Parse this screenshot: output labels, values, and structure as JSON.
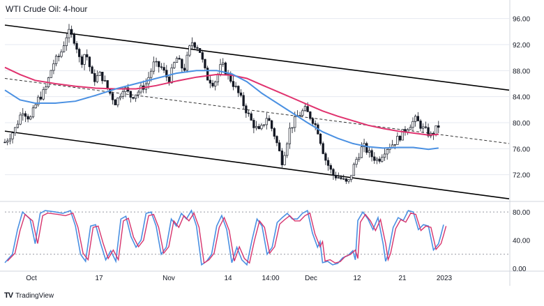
{
  "title": "WTI Crude Oil: 4-hour",
  "brand": {
    "logo": "TV",
    "name": "TradingView",
    "icon": "tradingview-logo-icon"
  },
  "colors": {
    "candle": "#131722",
    "sma_fast": "#4a90e2",
    "sma_slow": "#e0326e",
    "channel": "#000000",
    "midline": "#333333",
    "stoch_k": "#4a90e2",
    "stoch_d": "#d6336c",
    "grid": "#e6e9f0",
    "axis_text": "#131722"
  },
  "chart_data": {
    "type": "candlestick",
    "price_axis": {
      "ticks": [
        "96.00",
        "92.00",
        "88.00",
        "84.00",
        "80.00",
        "76.00",
        "72.00"
      ],
      "ylim": [
        68,
        98
      ]
    },
    "osc_axis": {
      "ticks": [
        "80.00",
        "40.00",
        "0.00"
      ],
      "ylim": [
        -3,
        92
      ],
      "overbought": 80,
      "oversold": 20
    },
    "x_axis": {
      "ticks": [
        "Oct",
        "17",
        "Nov",
        "14",
        "14:00",
        "Dec",
        "12",
        "21",
        "2023"
      ]
    },
    "trend_lines": {
      "upper_channel": [
        [
          0,
          95.0
        ],
        [
          100,
          85.0
        ]
      ],
      "lower_channel": [
        [
          0,
          78.7
        ],
        [
          100,
          68.3
        ]
      ],
      "midline": [
        [
          0,
          86.8
        ],
        [
          100,
          76.8
        ]
      ]
    },
    "price_path": [
      [
        0,
        77.0
      ],
      [
        2,
        79.0
      ],
      [
        3.5,
        82.0
      ],
      [
        5,
        80.5
      ],
      [
        6.5,
        83.5
      ],
      [
        8,
        85.0
      ],
      [
        9.5,
        89.0
      ],
      [
        11,
        90.5
      ],
      [
        12.5,
        94.0
      ],
      [
        14,
        92.5
      ],
      [
        15,
        89.0
      ],
      [
        16,
        91.0
      ],
      [
        17.5,
        86.5
      ],
      [
        19,
        87.5
      ],
      [
        20.5,
        85.0
      ],
      [
        22,
        83.0
      ],
      [
        23.5,
        85.5
      ],
      [
        25,
        84.0
      ],
      [
        26.5,
        84.8
      ],
      [
        28,
        86.0
      ],
      [
        29.5,
        89.0
      ],
      [
        31,
        88.5
      ],
      [
        32.5,
        86.5
      ],
      [
        34,
        90.0
      ],
      [
        35.5,
        88.0
      ],
      [
        37,
        92.5
      ],
      [
        38.5,
        91.5
      ],
      [
        40,
        87.0
      ],
      [
        41.5,
        86.0
      ],
      [
        43,
        89.0
      ],
      [
        44.5,
        87.0
      ],
      [
        46,
        85.0
      ],
      [
        47.5,
        82.5
      ],
      [
        49,
        80.0
      ],
      [
        50.5,
        78.5
      ],
      [
        52,
        81.0
      ],
      [
        53.5,
        78.0
      ],
      [
        55,
        74.0
      ],
      [
        56.5,
        79.0
      ],
      [
        58,
        81.0
      ],
      [
        59.5,
        82.0
      ],
      [
        61,
        80.5
      ],
      [
        62,
        79.0
      ],
      [
        63.5,
        74.5
      ],
      [
        65,
        72.0
      ],
      [
        66.5,
        71.5
      ],
      [
        68,
        70.5
      ],
      [
        69.5,
        74.0
      ],
      [
        71,
        76.5
      ],
      [
        72.5,
        75.0
      ],
      [
        74,
        74.2
      ],
      [
        75.5,
        76.0
      ],
      [
        77,
        76.8
      ],
      [
        78.5,
        78.0
      ],
      [
        80,
        79.5
      ],
      [
        81.5,
        80.5
      ],
      [
        83,
        79.0
      ],
      [
        84.5,
        78.0
      ],
      [
        86,
        79.5
      ]
    ],
    "sma_fast": [
      [
        0,
        85.0
      ],
      [
        3,
        83.5
      ],
      [
        6,
        83.0
      ],
      [
        10,
        83.0
      ],
      [
        14,
        83.3
      ],
      [
        18,
        84.2
      ],
      [
        22,
        85.2
      ],
      [
        26,
        86.0
      ],
      [
        30,
        86.8
      ],
      [
        34,
        87.6
      ],
      [
        38,
        88.0
      ],
      [
        42,
        88.0
      ],
      [
        45,
        87.5
      ],
      [
        48,
        86.3
      ],
      [
        51,
        84.5
      ],
      [
        54,
        83.0
      ],
      [
        57,
        81.5
      ],
      [
        60,
        80.0
      ],
      [
        63,
        78.6
      ],
      [
        66,
        77.6
      ],
      [
        69,
        76.8
      ],
      [
        72,
        76.3
      ],
      [
        75,
        76.1
      ],
      [
        78,
        76.2
      ],
      [
        81,
        76.2
      ],
      [
        84,
        75.9
      ],
      [
        86,
        76.1
      ]
    ],
    "sma_slow": [
      [
        0,
        88.5
      ],
      [
        3,
        87.4
      ],
      [
        6,
        86.5
      ],
      [
        10,
        86.0
      ],
      [
        14,
        85.6
      ],
      [
        18,
        85.3
      ],
      [
        22,
        85.2
      ],
      [
        26,
        85.2
      ],
      [
        30,
        85.7
      ],
      [
        34,
        86.4
      ],
      [
        38,
        87.0
      ],
      [
        42,
        87.4
      ],
      [
        45,
        87.3
      ],
      [
        48,
        86.8
      ],
      [
        51,
        85.8
      ],
      [
        54,
        84.8
      ],
      [
        57,
        83.8
      ],
      [
        60,
        82.8
      ],
      [
        63,
        81.8
      ],
      [
        66,
        81.0
      ],
      [
        69,
        80.3
      ],
      [
        72,
        79.6
      ],
      [
        75,
        79.1
      ],
      [
        78,
        78.7
      ],
      [
        81,
        78.4
      ],
      [
        84,
        78.1
      ],
      [
        86,
        78.2
      ]
    ],
    "stochastic": {
      "k_series_label": "",
      "k": [
        [
          0,
          8
        ],
        [
          1.5,
          20
        ],
        [
          2.5,
          55
        ],
        [
          3.5,
          80
        ],
        [
          5,
          70
        ],
        [
          6,
          35
        ],
        [
          7,
          78
        ],
        [
          8,
          82
        ],
        [
          10,
          80
        ],
        [
          11.5,
          78
        ],
        [
          13,
          82
        ],
        [
          14,
          60
        ],
        [
          15,
          20
        ],
        [
          16,
          10
        ],
        [
          17,
          60
        ],
        [
          18,
          62
        ],
        [
          19,
          35
        ],
        [
          20,
          12
        ],
        [
          21,
          25
        ],
        [
          22,
          10
        ],
        [
          23,
          70
        ],
        [
          24,
          74
        ],
        [
          25,
          45
        ],
        [
          26,
          30
        ],
        [
          27,
          40
        ],
        [
          28,
          78
        ],
        [
          29,
          80
        ],
        [
          30,
          60
        ],
        [
          31,
          20
        ],
        [
          32,
          30
        ],
        [
          33,
          70
        ],
        [
          34,
          60
        ],
        [
          35,
          78
        ],
        [
          36,
          70
        ],
        [
          37,
          82
        ],
        [
          38,
          60
        ],
        [
          39,
          5
        ],
        [
          40,
          10
        ],
        [
          41,
          20
        ],
        [
          42,
          60
        ],
        [
          43,
          75
        ],
        [
          44,
          55
        ],
        [
          45,
          8
        ],
        [
          46,
          30
        ],
        [
          47,
          12
        ],
        [
          48,
          5
        ],
        [
          49,
          40
        ],
        [
          50,
          70
        ],
        [
          51,
          60
        ],
        [
          52,
          20
        ],
        [
          53,
          30
        ],
        [
          54,
          65
        ],
        [
          55,
          72
        ],
        [
          56,
          78
        ],
        [
          57,
          70
        ],
        [
          58,
          70
        ],
        [
          59,
          78
        ],
        [
          60,
          82
        ],
        [
          61,
          50
        ],
        [
          62,
          30
        ],
        [
          62.5,
          38
        ],
        [
          63,
          8
        ],
        [
          64,
          10
        ],
        [
          65,
          5
        ],
        [
          66,
          7
        ],
        [
          67,
          15
        ],
        [
          68,
          18
        ],
        [
          69,
          25
        ],
        [
          69.5,
          12
        ],
        [
          70,
          68
        ],
        [
          71,
          80
        ],
        [
          72,
          70
        ],
        [
          73,
          55
        ],
        [
          74,
          72
        ],
        [
          75,
          35
        ],
        [
          75.5,
          10
        ],
        [
          76,
          20
        ],
        [
          77,
          58
        ],
        [
          78,
          72
        ],
        [
          79,
          68
        ],
        [
          80,
          82
        ],
        [
          81,
          80
        ],
        [
          82,
          55
        ],
        [
          83,
          62
        ],
        [
          84,
          60
        ],
        [
          85,
          26
        ],
        [
          86,
          35
        ],
        [
          86.5,
          48
        ],
        [
          87,
          62
        ]
      ]
    }
  }
}
